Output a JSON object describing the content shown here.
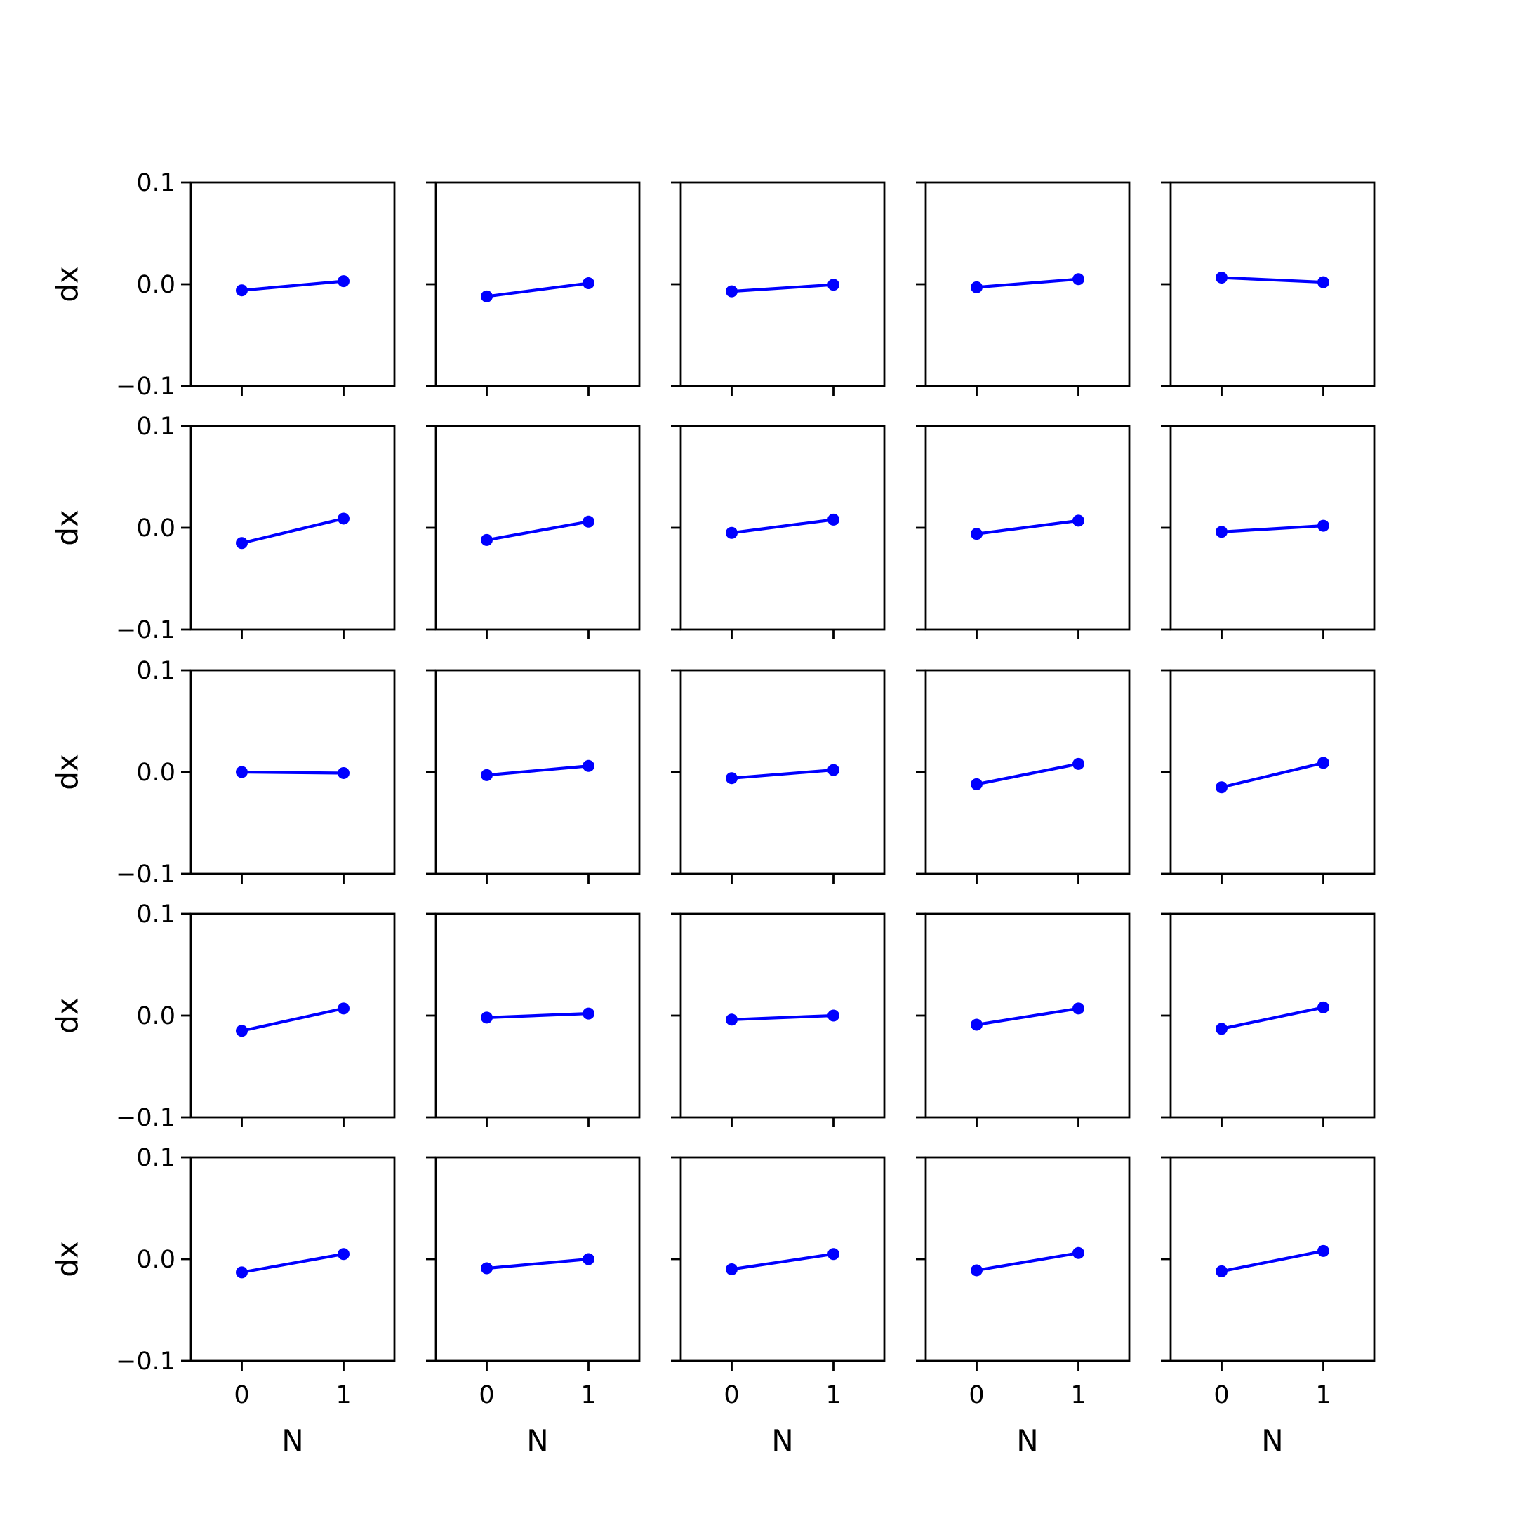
{
  "chart_data": {
    "type": "line",
    "grid": false,
    "rows": 5,
    "cols": 5,
    "xlim": [
      -0.5,
      1.5
    ],
    "ylim": [
      -0.1,
      0.1
    ],
    "x": [
      0,
      1
    ],
    "xticks": [
      0,
      1
    ],
    "xtick_labels": [
      "0",
      "1"
    ],
    "yticks": [
      0.1,
      0.0,
      -0.1
    ],
    "ytick_labels": [
      "0.1",
      "0.0",
      "−0.1"
    ],
    "xlabel": "N",
    "ylabel": "dx",
    "series_color": "#0000ff",
    "panels": [
      {
        "values": [
          -0.006,
          0.003
        ]
      },
      {
        "values": [
          -0.012,
          0.001
        ]
      },
      {
        "values": [
          -0.007,
          -0.0005
        ]
      },
      {
        "values": [
          -0.003,
          0.005
        ]
      },
      {
        "values": [
          0.0065,
          0.002
        ]
      },
      {
        "values": [
          -0.015,
          0.009
        ]
      },
      {
        "values": [
          -0.012,
          0.006
        ]
      },
      {
        "values": [
          -0.005,
          0.008
        ]
      },
      {
        "values": [
          -0.006,
          0.007
        ]
      },
      {
        "values": [
          -0.004,
          0.002
        ]
      },
      {
        "values": [
          0.0,
          -0.001
        ]
      },
      {
        "values": [
          -0.003,
          0.006
        ]
      },
      {
        "values": [
          -0.006,
          0.002
        ]
      },
      {
        "values": [
          -0.012,
          0.008
        ]
      },
      {
        "values": [
          -0.015,
          0.009
        ]
      },
      {
        "values": [
          -0.015,
          0.007
        ]
      },
      {
        "values": [
          -0.002,
          0.002
        ]
      },
      {
        "values": [
          -0.004,
          0.0
        ]
      },
      {
        "values": [
          -0.009,
          0.007
        ]
      },
      {
        "values": [
          -0.013,
          0.008
        ]
      },
      {
        "values": [
          -0.013,
          0.005
        ]
      },
      {
        "values": [
          -0.009,
          0.0
        ]
      },
      {
        "values": [
          -0.01,
          0.005
        ]
      },
      {
        "values": [
          -0.011,
          0.006
        ]
      },
      {
        "values": [
          -0.012,
          0.008
        ]
      }
    ]
  }
}
